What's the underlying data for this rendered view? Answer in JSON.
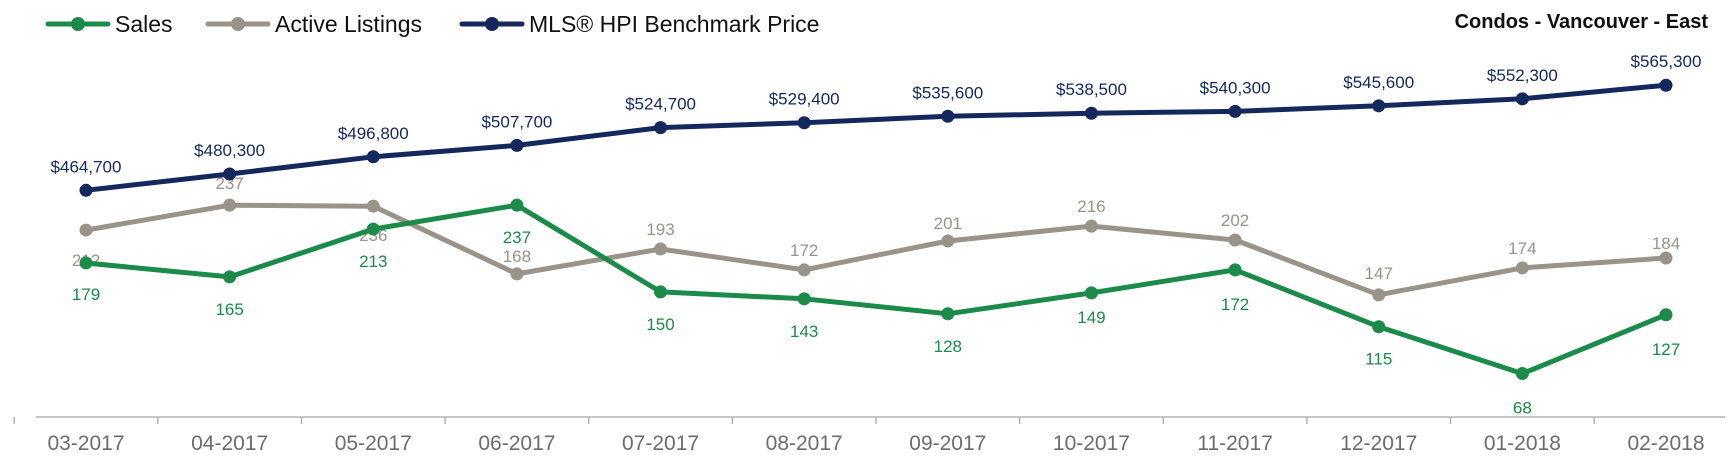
{
  "chart_data": {
    "type": "line",
    "title": "Condos - Vancouver - East",
    "categories": [
      "03-2017",
      "04-2017",
      "05-2017",
      "06-2017",
      "07-2017",
      "08-2017",
      "09-2017",
      "10-2017",
      "11-2017",
      "12-2017",
      "01-2018",
      "02-2018"
    ],
    "series": [
      {
        "name": "Sales",
        "color": "#1b8a4a",
        "axis": "volume",
        "values": [
          179,
          165,
          213,
          237,
          150,
          143,
          128,
          149,
          172,
          115,
          68,
          127
        ],
        "labels": [
          "179",
          "165",
          "213",
          "237",
          "150",
          "143",
          "128",
          "149",
          "172",
          "115",
          "68",
          "127"
        ]
      },
      {
        "name": "Active Listings",
        "color": "#9a938a",
        "axis": "volume",
        "values": [
          212,
          237,
          236,
          168,
          193,
          172,
          201,
          216,
          202,
          147,
          174,
          184
        ],
        "labels": [
          "212",
          "237",
          "236",
          "168",
          "193",
          "172",
          "201",
          "216",
          "202",
          "147",
          "174",
          "184"
        ]
      },
      {
        "name": "MLS® HPI Benchmark Price",
        "color": "#14285e",
        "axis": "price",
        "values": [
          464700,
          480300,
          496800,
          507700,
          524700,
          529400,
          535600,
          538500,
          540300,
          545600,
          552300,
          565300
        ],
        "labels": [
          "$464,700",
          "$480,300",
          "$496,800",
          "$507,700",
          "$524,700",
          "$529,400",
          "$535,600",
          "$538,500",
          "$540,300",
          "$545,600",
          "$552,300",
          "$565,300"
        ]
      }
    ],
    "legend_position": "top-left",
    "grid": false
  }
}
